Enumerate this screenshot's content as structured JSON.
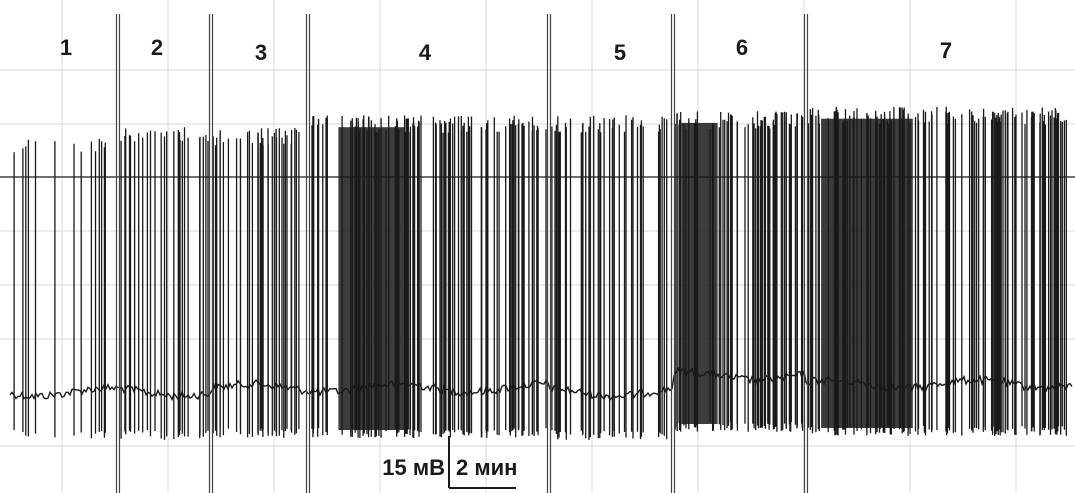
{
  "chart_data": {
    "type": "line",
    "title": "",
    "xlabel": "",
    "ylabel": "",
    "grid": true,
    "trace_color": "#1a1a1a",
    "grid_color": "#d9d9d9",
    "segments": [
      {
        "label": "1",
        "spike_density": 0.25,
        "baseline_offset": 0.0,
        "peak_level": 0.8
      },
      {
        "label": "2",
        "spike_density": 0.55,
        "baseline_offset": 0.0,
        "peak_level": 0.83
      },
      {
        "label": "3",
        "spike_density": 0.7,
        "baseline_offset": 0.1,
        "peak_level": 0.82
      },
      {
        "label": "4",
        "spike_density": 0.9,
        "baseline_offset": 0.1,
        "peak_level": 0.85
      },
      {
        "label": "5",
        "spike_density": 0.6,
        "baseline_offset": 0.0,
        "peak_level": 0.85
      },
      {
        "label": "6",
        "spike_density": 1.0,
        "baseline_offset": 0.4,
        "peak_level": 0.86
      },
      {
        "label": "7",
        "spike_density": 0.95,
        "baseline_offset": 0.2,
        "peak_level": 0.87
      }
    ],
    "scale_bar": {
      "voltage_label": "15 мВ",
      "time_label": "2 мин"
    }
  }
}
